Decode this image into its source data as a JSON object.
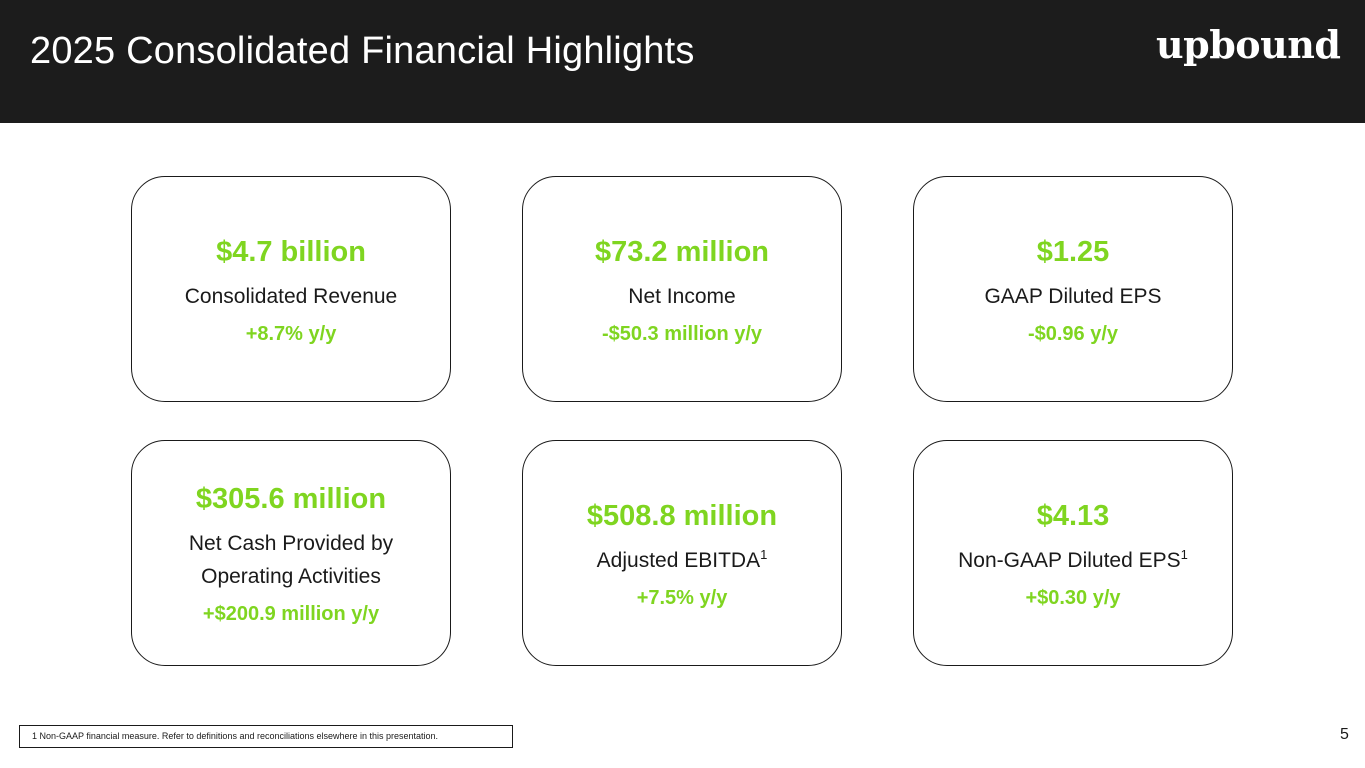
{
  "header": {
    "title": "2025 Consolidated Financial Highlights",
    "logo_text": "upbound"
  },
  "colors": {
    "header_background": "#1c1c1c",
    "accent_green": "#7fd520",
    "text": "#1a1a1a"
  },
  "cards": [
    {
      "value": "$4.7 billion",
      "label": "Consolidated Revenue",
      "label_line2": "",
      "footnote_mark": "",
      "change": "+8.7% y/y"
    },
    {
      "value": "$73.2 million",
      "label": "Net Income",
      "label_line2": "",
      "footnote_mark": "",
      "change": "-$50.3 million y/y"
    },
    {
      "value": "$1.25",
      "label": "GAAP Diluted EPS",
      "label_line2": "",
      "footnote_mark": "",
      "change": "-$0.96 y/y"
    },
    {
      "value": "$305.6 million",
      "label": "Net Cash Provided by",
      "label_line2": "Operating Activities",
      "footnote_mark": "",
      "change": "+$200.9 million y/y"
    },
    {
      "value": "$508.8 million",
      "label": "Adjusted EBITDA",
      "label_line2": "",
      "footnote_mark": "1",
      "change": "+7.5% y/y"
    },
    {
      "value": "$4.13",
      "label": "Non-GAAP Diluted EPS",
      "label_line2": "",
      "footnote_mark": "1",
      "change": "+$0.30 y/y"
    }
  ],
  "footnote": "1 Non-GAAP financial measure. Refer to definitions and reconciliations elsewhere in this presentation.",
  "page_number": "5"
}
